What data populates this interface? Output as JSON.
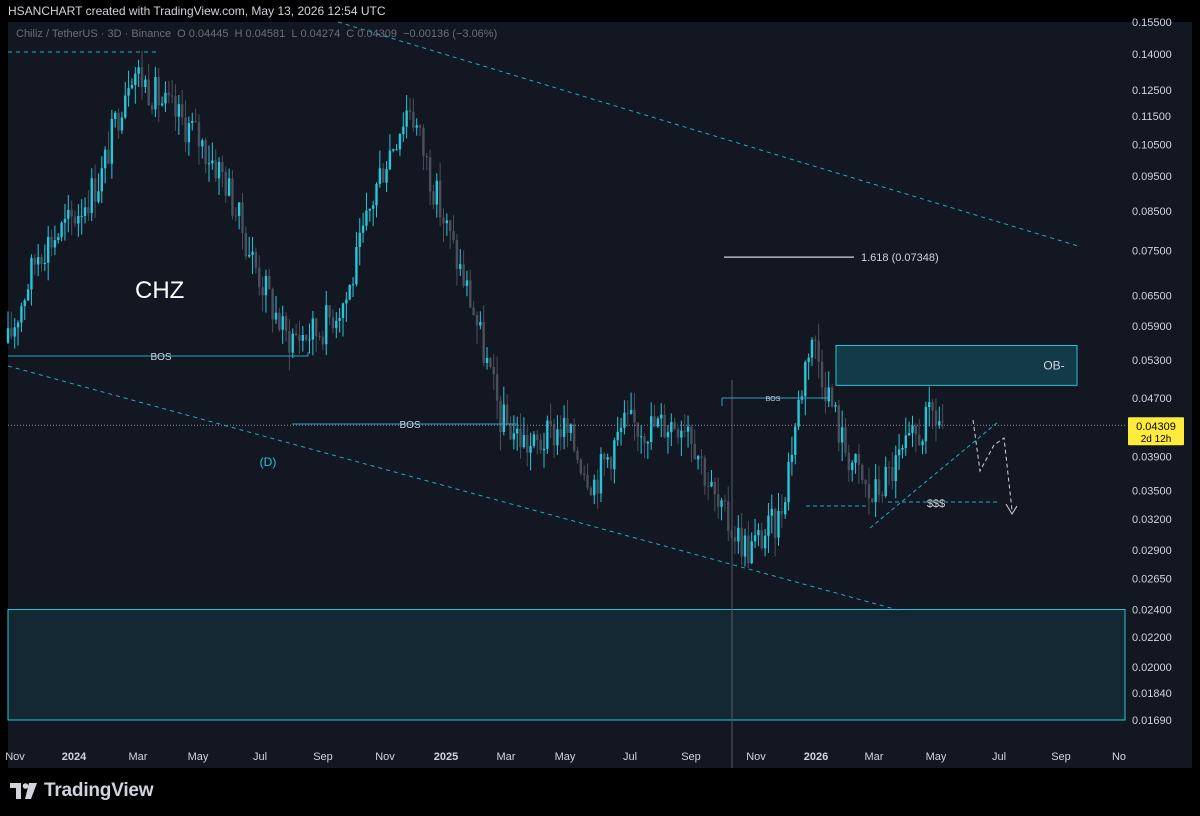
{
  "header": {
    "text": "HSANCHART created with TradingView.com, May 13, 2026 12:54 UTC"
  },
  "symbol_bar": {
    "name": "Chiliz / TetherUS · 3D · Binance",
    "open_label": "O",
    "open": "0.04445",
    "high_label": "H",
    "high": "0.04581",
    "low_label": "L",
    "low": "0.04274",
    "close_label": "C",
    "close": "0.04309",
    "change": "−0.00136 (−3.06%)"
  },
  "footer": {
    "brand": "TradingView",
    "logo_icon": "tradingview-logo-icon"
  },
  "colors": {
    "background": "#131722",
    "up": "#26c6da",
    "down": "#4a4f5c",
    "zone_fill": "#123a48",
    "zone_stroke": "#26c6da",
    "price_tag": "#ffeb3b"
  },
  "chart_data": {
    "type": "candlestick",
    "scale": "log",
    "title": "CHZ",
    "price_axis_ticks": [
      "0.15500",
      "0.14000",
      "0.12500",
      "0.11500",
      "0.10500",
      "0.09500",
      "0.08500",
      "0.07500",
      "0.06500",
      "0.05900",
      "0.05300",
      "0.04700",
      "0.03900",
      "0.03500",
      "0.03200",
      "0.02900",
      "0.02650",
      "0.02400",
      "0.02200",
      "0.02000",
      "0.01840",
      "0.01690"
    ],
    "time_axis_ticks": [
      "Nov",
      "2024",
      "Mar",
      "May",
      "Jul",
      "Sep",
      "Nov",
      "2025",
      "Mar",
      "May",
      "Jul",
      "Sep",
      "Nov",
      "2026",
      "Mar",
      "May",
      "Jul",
      "Sep",
      "No"
    ],
    "bold_time_ticks": [
      "2024",
      "2025",
      "2026"
    ],
    "current_price": {
      "value": "0.04309",
      "countdown": "2d 12h"
    },
    "close_path": [
      {
        "x": "2023-11",
        "y": 0.056
      },
      {
        "x": "2023-12",
        "y": 0.075
      },
      {
        "x": "2024-01",
        "y": 0.082
      },
      {
        "x": "2024-02",
        "y": 0.095
      },
      {
        "x": "2024-03",
        "y": 0.135
      },
      {
        "x": "2024-04",
        "y": 0.12
      },
      {
        "x": "2024-05",
        "y": 0.11
      },
      {
        "x": "2024-06",
        "y": 0.095
      },
      {
        "x": "2024-07",
        "y": 0.072
      },
      {
        "x": "2024-08",
        "y": 0.057
      },
      {
        "x": "2024-09",
        "y": 0.058
      },
      {
        "x": "2024-10",
        "y": 0.065
      },
      {
        "x": "2024-11",
        "y": 0.095
      },
      {
        "x": "2024-12",
        "y": 0.12
      },
      {
        "x": "2025-01",
        "y": 0.085
      },
      {
        "x": "2025-02",
        "y": 0.063
      },
      {
        "x": "2025-03",
        "y": 0.044
      },
      {
        "x": "2025-04",
        "y": 0.04
      },
      {
        "x": "2025-05",
        "y": 0.043
      },
      {
        "x": "2025-06",
        "y": 0.036
      },
      {
        "x": "2025-07",
        "y": 0.043
      },
      {
        "x": "2025-08",
        "y": 0.043
      },
      {
        "x": "2025-09",
        "y": 0.044
      },
      {
        "x": "2025-10",
        "y": 0.033
      },
      {
        "x": "2025-11",
        "y": 0.029
      },
      {
        "x": "2025-12",
        "y": 0.032
      },
      {
        "x": "2026-01",
        "y": 0.058
      },
      {
        "x": "2026-02",
        "y": 0.041
      },
      {
        "x": "2026-03",
        "y": 0.034
      },
      {
        "x": "2026-04",
        "y": 0.039
      },
      {
        "x": "2026-05",
        "y": 0.0445
      },
      {
        "x": "2026-05-13",
        "y": 0.04309
      }
    ],
    "annotations": {
      "ticker_label": "CHZ",
      "bos_1": "BOS",
      "bos_2": "BOS",
      "bos_3": "BOS",
      "wave_label": "(D)",
      "fib_label": "1.618 (0.07348)",
      "fib_level": 0.07348,
      "ob_label": "OB-",
      "liquidity_label": "$$$"
    }
  }
}
